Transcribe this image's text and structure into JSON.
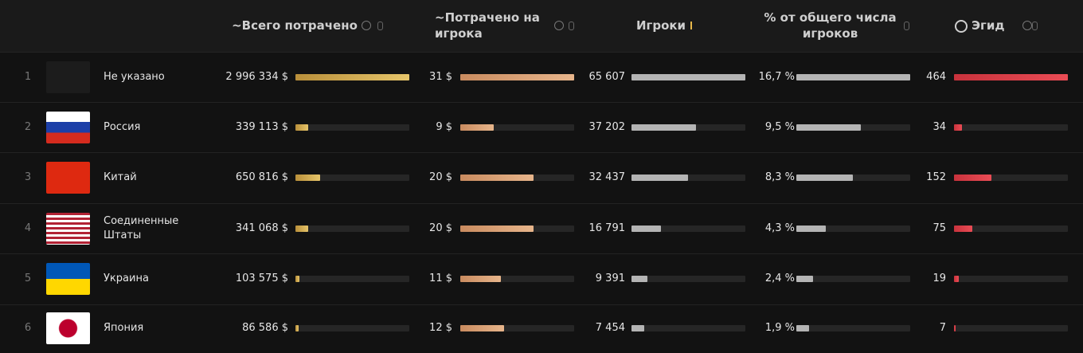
{
  "table": {
    "columns": [
      "~Всего потрачено",
      "~Потрачено на игрока",
      "Игроки",
      "% от общего числа игроков",
      "Эгид"
    ],
    "rows": [
      {
        "rank": 1,
        "country": "Не указано",
        "cells": [
          {
            "value": 2996334,
            "label": "2 996 334 $"
          },
          {
            "value": 31,
            "label": "31 $"
          },
          {
            "value": 65607,
            "label": "65 607"
          },
          {
            "value": 16.7,
            "label": "16,7 %"
          },
          464
        ]
      },
      {
        "rank": 2,
        "country": "Россия",
        "cells": [
          {
            "value": 339113,
            "label": "339 113 $"
          },
          {
            "value": 9,
            "label": "9 $"
          },
          {
            "value": 37202,
            "label": "37 202"
          },
          {
            "value": 9.5,
            "label": "9,5 %"
          },
          34
        ]
      },
      {
        "rank": 3,
        "country": "Китай",
        "cells": [
          {
            "value": 650816,
            "label": "650 816 $"
          },
          {
            "value": 20,
            "label": "20 $"
          },
          {
            "value": 32437,
            "label": "32 437"
          },
          {
            "value": 8.3,
            "label": "8,3 %"
          },
          152
        ]
      },
      {
        "rank": 4,
        "country": "Соединенные Штаты",
        "cells": [
          {
            "value": 341068,
            "label": "341 068 $"
          },
          {
            "value": 20,
            "label": "20 $"
          },
          {
            "value": 16791,
            "label": "16 791"
          },
          {
            "value": 4.3,
            "label": "4,3 %"
          },
          75
        ]
      },
      {
        "rank": 5,
        "country": "Украина",
        "cells": [
          {
            "value": 103575,
            "label": "103 575 $"
          },
          {
            "value": 11,
            "label": "11 $"
          },
          {
            "value": 9391,
            "label": "9 391"
          },
          {
            "value": 2.4,
            "label": "2,4 %"
          },
          19
        ]
      },
      {
        "rank": 6,
        "country": "Япония",
        "cells": [
          {
            "value": 86586,
            "label": "86 586 $"
          },
          {
            "value": 12,
            "label": "12 $"
          },
          {
            "value": 7454,
            "label": "7 454"
          },
          {
            "value": 1.9,
            "label": "1,9 %"
          },
          7
        ]
      }
    ]
  }
}
